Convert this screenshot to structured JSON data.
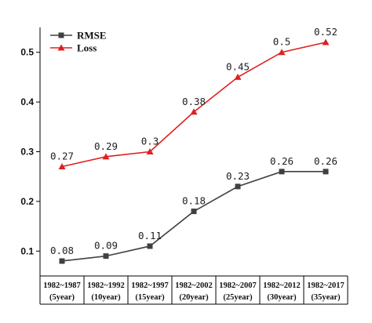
{
  "chart_data": {
    "type": "line",
    "categories": [
      [
        "1982~1987",
        "(5year)"
      ],
      [
        "1982~1992",
        "(10year)"
      ],
      [
        "1982~1997",
        "(15year)"
      ],
      [
        "1982~2002",
        "(20year)"
      ],
      [
        "1982~2007",
        "(25year)"
      ],
      [
        "1982~2012",
        "(30year)"
      ],
      [
        "1982~2017",
        "(35year)"
      ]
    ],
    "series": [
      {
        "name": "RMSE",
        "values": [
          0.08,
          0.09,
          0.11,
          0.18,
          0.23,
          0.26,
          0.26
        ],
        "labels": [
          "0.08",
          "0.09",
          "0.11",
          "0.18",
          "0.23",
          "0.26",
          "0.26"
        ],
        "color": "#404040",
        "marker": "square"
      },
      {
        "name": "Loss",
        "values": [
          0.27,
          0.29,
          0.3,
          0.38,
          0.45,
          0.5,
          0.52
        ],
        "labels": [
          "0.27",
          "0.29",
          "0.3",
          "0.38",
          "0.45",
          "0.5",
          "0.52"
        ],
        "color": "#e02020",
        "marker": "triangle"
      }
    ],
    "yticks": [
      "0.1",
      "0.2",
      "0.3",
      "0.4",
      "0.5"
    ],
    "ylim": [
      0.05,
      0.55
    ],
    "title": "",
    "xlabel": "",
    "ylabel": "",
    "legend_position": "top-left",
    "grid": false
  }
}
